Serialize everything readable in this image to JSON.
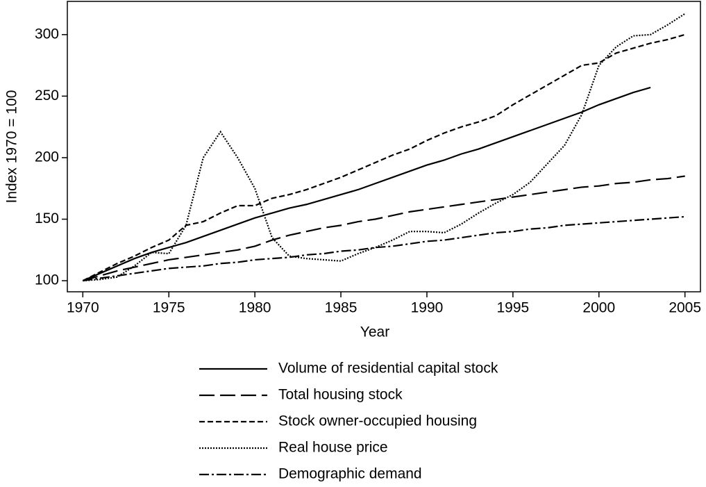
{
  "chart_data": {
    "type": "line",
    "x_label": "Year",
    "y_label": "Index 1970 = 100",
    "x": [
      1970,
      1971,
      1972,
      1973,
      1974,
      1975,
      1976,
      1977,
      1978,
      1979,
      1980,
      1981,
      1982,
      1983,
      1984,
      1985,
      1986,
      1987,
      1988,
      1989,
      1990,
      1991,
      1992,
      1993,
      1994,
      1995,
      1996,
      1997,
      1998,
      1999,
      2000,
      2001,
      2002,
      2003,
      2004,
      2005
    ],
    "series": [
      {
        "name": "Volume of residential capital stock",
        "color": "#000000",
        "values": [
          100,
          106,
          112,
          118,
          123,
          127,
          131,
          136,
          141,
          146,
          151,
          155,
          159,
          162,
          166,
          170,
          174,
          179,
          184,
          189,
          194,
          198,
          203,
          207,
          212,
          217,
          222,
          227,
          232,
          237,
          243,
          248,
          253,
          257,
          null,
          null
        ]
      },
      {
        "name": "Total housing stock",
        "color": "#000000",
        "values": [
          100,
          104,
          108,
          111,
          114,
          117,
          119,
          121,
          123,
          125,
          128,
          133,
          137,
          140,
          143,
          145,
          148,
          150,
          153,
          156,
          158,
          160,
          162,
          164,
          166,
          168,
          170,
          172,
          174,
          176,
          177,
          179,
          180,
          182,
          183,
          185
        ]
      },
      {
        "name": "Stock owner-occupied housing",
        "color": "#000000",
        "values": [
          100,
          107,
          114,
          120,
          127,
          133,
          145,
          148,
          155,
          161,
          161,
          167,
          170,
          174,
          179,
          184,
          190,
          196,
          202,
          207,
          214,
          220,
          225,
          229,
          234,
          243,
          251,
          259,
          267,
          275,
          277,
          285,
          289,
          293,
          296,
          300
        ]
      },
      {
        "name": "Real house price",
        "color": "#000000",
        "values": [
          100,
          101,
          103,
          112,
          123,
          122,
          145,
          200,
          221,
          200,
          175,
          135,
          120,
          118,
          117,
          116,
          122,
          127,
          133,
          140,
          140,
          139,
          146,
          155,
          163,
          170,
          180,
          195,
          210,
          235,
          275,
          290,
          299,
          300,
          308,
          317
        ]
      },
      {
        "name": "Demographic demand",
        "color": "#000000",
        "values": [
          100,
          102,
          104,
          106,
          108,
          110,
          111,
          112,
          114,
          115,
          117,
          118,
          119,
          121,
          122,
          124,
          125,
          127,
          128,
          130,
          132,
          133,
          135,
          137,
          139,
          140,
          142,
          143,
          145,
          146,
          147,
          148,
          149,
          150,
          151,
          152
        ]
      }
    ],
    "xlim": [
      1969.1,
      2005.9
    ],
    "ylim": [
      91,
      327
    ],
    "xticks": [
      1970,
      1975,
      1980,
      1985,
      1990,
      1995,
      2000,
      2005
    ],
    "yticks": [
      100,
      150,
      200,
      250,
      300
    ]
  }
}
